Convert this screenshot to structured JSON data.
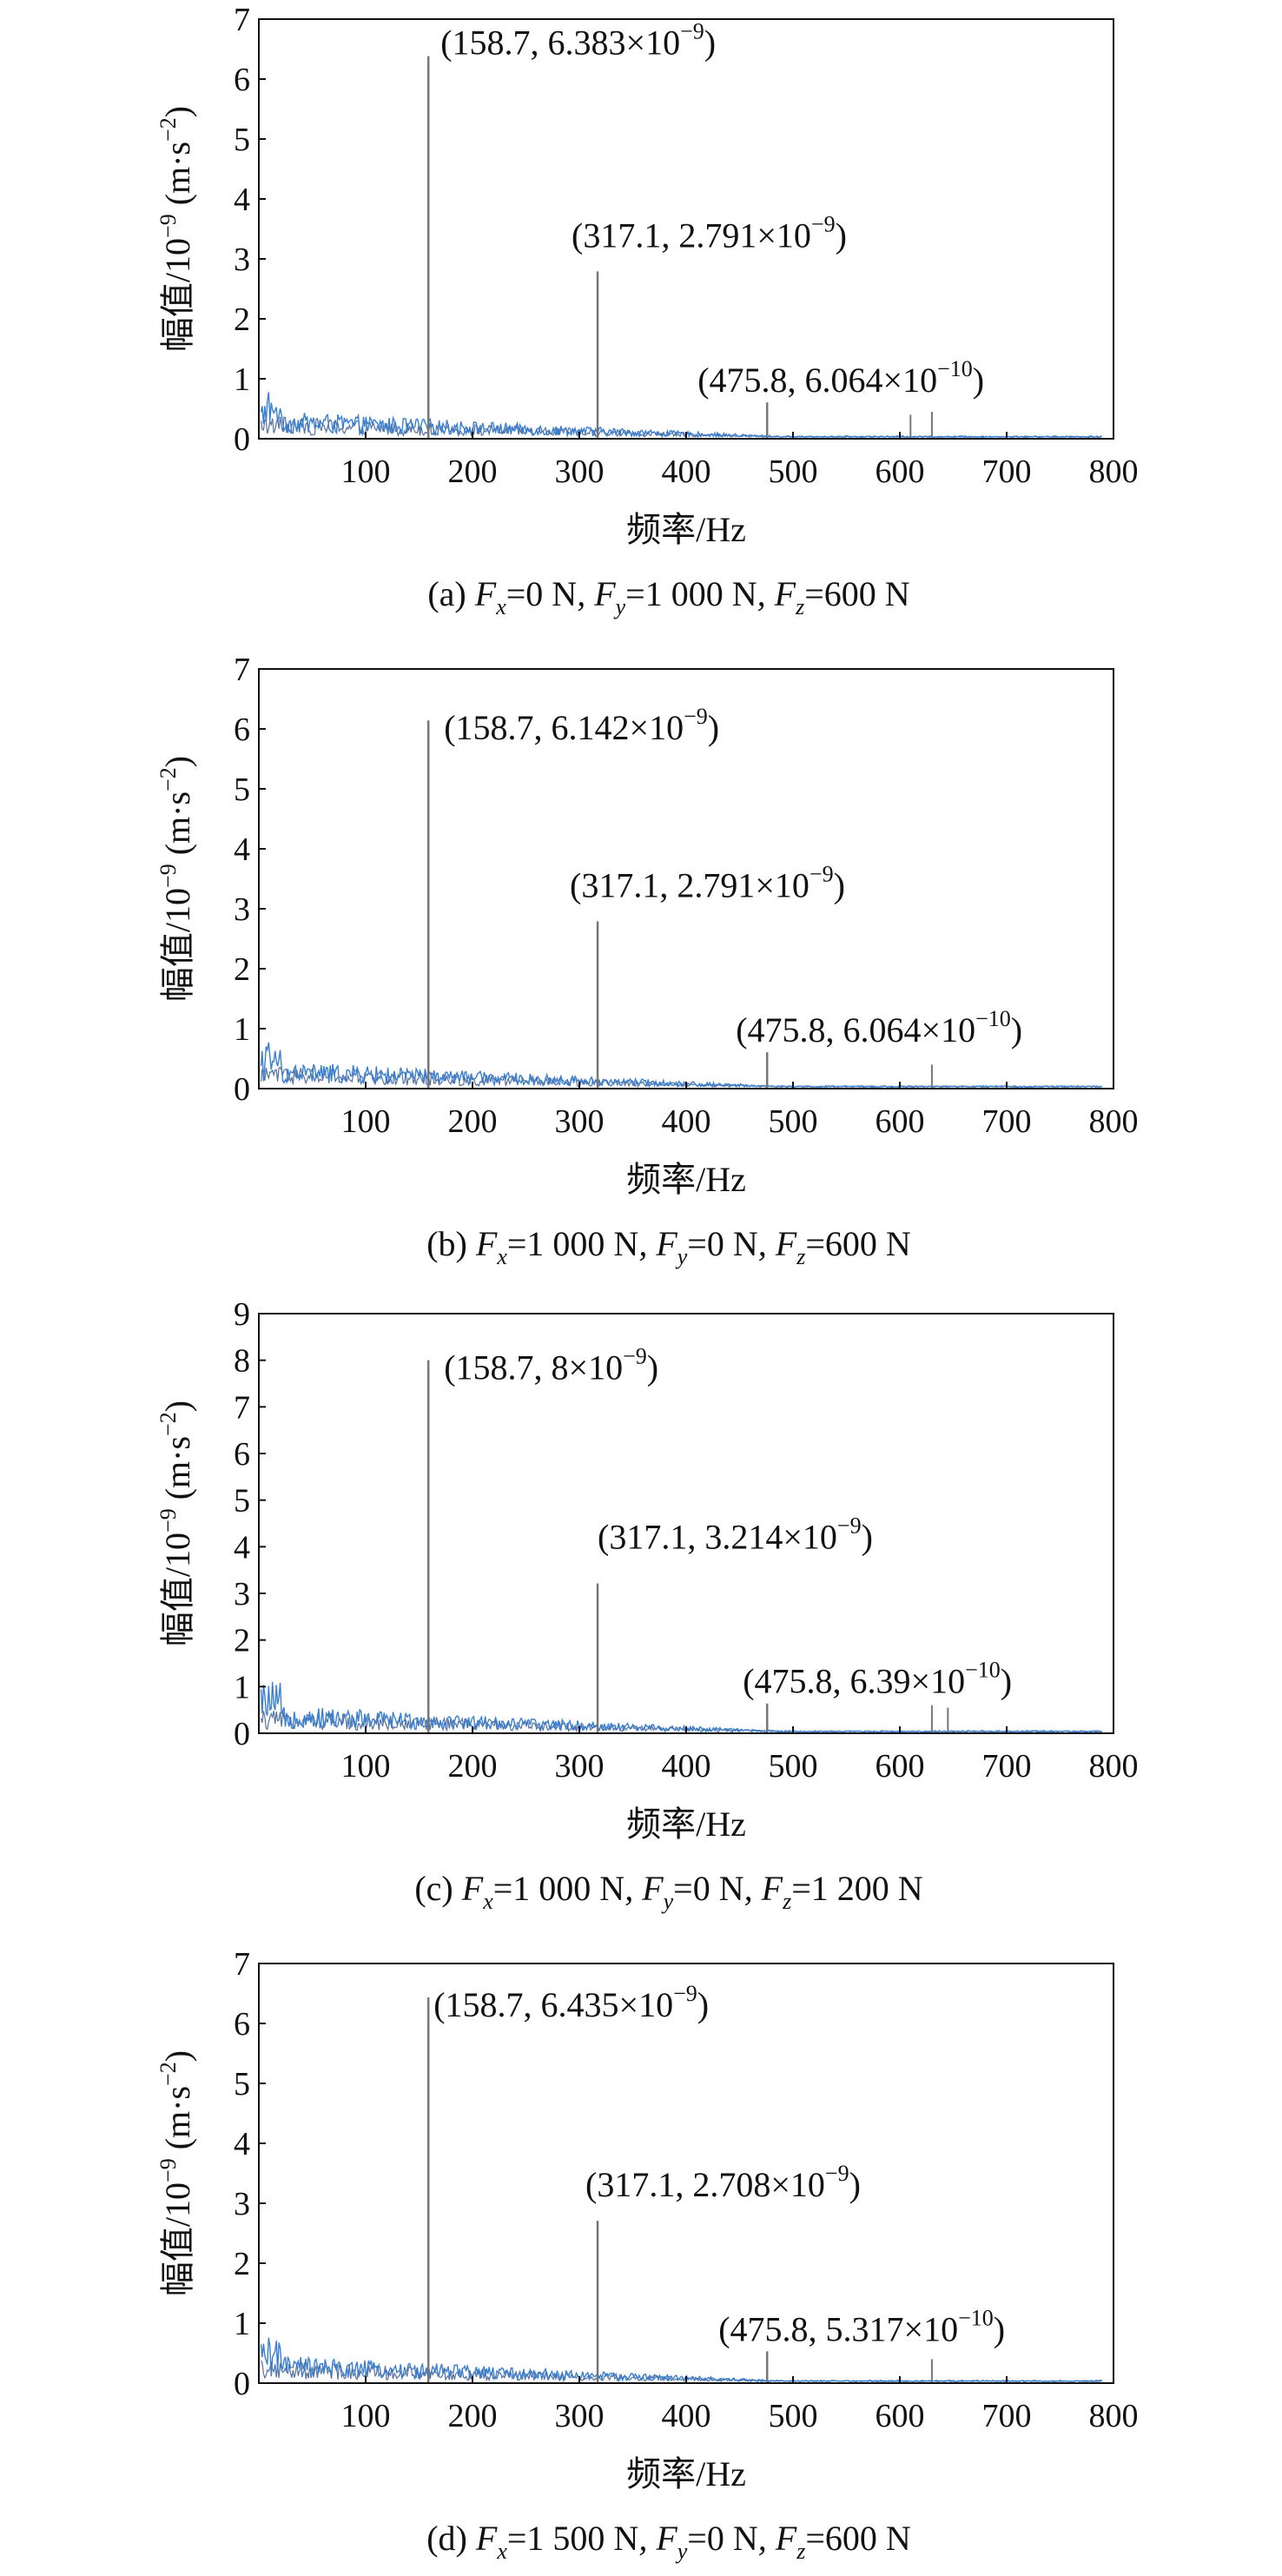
{
  "chart_data": [
    {
      "type": "line",
      "caption": {
        "label": "(a)",
        "fx": "0 N",
        "fy": "1 000 N",
        "fz": "600 N"
      },
      "xlabel": "频率/Hz",
      "ylabel": {
        "main": "幅值/10",
        "exp": "−9",
        "unit_pre": " (m·s",
        "unit_exp": "−2",
        "unit_post": ")"
      },
      "xlim": [
        0,
        800
      ],
      "ylim": [
        0,
        7
      ],
      "xticks": [
        100,
        200,
        300,
        400,
        500,
        600,
        700,
        800
      ],
      "yticks": [
        0,
        1,
        2,
        3,
        4,
        5,
        6,
        7
      ],
      "peaks": [
        {
          "x": 158.7,
          "y": 6.383
        },
        {
          "x": 317.1,
          "y": 2.791
        },
        {
          "x": 475.8,
          "y": 0.6064
        }
      ],
      "minor_peaks": [
        {
          "x": 610,
          "y": 0.4
        },
        {
          "x": 630,
          "y": 0.45
        }
      ],
      "annotations": [
        {
          "x": 158.7,
          "y": 6.383,
          "text": "(158.7, 6.383×10",
          "exp": "−9",
          "close": ")"
        },
        {
          "x": 317.1,
          "y": 2.791,
          "text": "(317.1, 2.791×10",
          "exp": "−9",
          "close": ")"
        },
        {
          "x": 475.8,
          "y": 0.6064,
          "text": "(475.8, 6.064×10",
          "exp": "−10",
          "close": ")"
        }
      ],
      "noise_level": 0.45
    },
    {
      "type": "line",
      "caption": {
        "label": "(b)",
        "fx": "1 000 N",
        "fy": "0 N",
        "fz": "600 N"
      },
      "xlabel": "频率/Hz",
      "ylabel": {
        "main": "幅值/10",
        "exp": "−9",
        "unit_pre": " (m·s",
        "unit_exp": "−2",
        "unit_post": ")"
      },
      "xlim": [
        0,
        800
      ],
      "ylim": [
        0,
        7
      ],
      "xticks": [
        100,
        200,
        300,
        400,
        500,
        600,
        700,
        800
      ],
      "yticks": [
        0,
        1,
        2,
        3,
        4,
        5,
        6,
        7
      ],
      "peaks": [
        {
          "x": 158.7,
          "y": 6.142
        },
        {
          "x": 317.1,
          "y": 2.791
        },
        {
          "x": 475.8,
          "y": 0.6064
        }
      ],
      "minor_peaks": [
        {
          "x": 630,
          "y": 0.4
        }
      ],
      "annotations": [
        {
          "x": 158.7,
          "y": 6.142,
          "text": "(158.7, 6.142×10",
          "exp": "−9",
          "close": ")"
        },
        {
          "x": 317.1,
          "y": 2.791,
          "text": "(317.1, 2.791×10",
          "exp": "−9",
          "close": ")"
        },
        {
          "x": 475.8,
          "y": 0.6064,
          "text": "(475.8, 6.064×10",
          "exp": "−10",
          "close": ")"
        }
      ],
      "noise_level": 0.45
    },
    {
      "type": "line",
      "caption": {
        "label": "(c)",
        "fx": "1 000 N",
        "fy": "0 N",
        "fz": "1 200 N"
      },
      "xlabel": "频率/Hz",
      "ylabel": {
        "main": "幅值/10",
        "exp": "−9",
        "unit_pre": " (m·s",
        "unit_exp": "−2",
        "unit_post": ")"
      },
      "xlim": [
        0,
        800
      ],
      "ylim": [
        0,
        9
      ],
      "xticks": [
        100,
        200,
        300,
        400,
        500,
        600,
        700,
        800
      ],
      "yticks": [
        0,
        1,
        2,
        3,
        4,
        5,
        6,
        7,
        8,
        9
      ],
      "peaks": [
        {
          "x": 158.7,
          "y": 8
        },
        {
          "x": 317.1,
          "y": 3.214
        },
        {
          "x": 475.8,
          "y": 0.639
        }
      ],
      "minor_peaks": [
        {
          "x": 630,
          "y": 0.6
        },
        {
          "x": 645,
          "y": 0.55
        }
      ],
      "annotations": [
        {
          "x": 158.7,
          "y": 8,
          "text": "(158.7, 8×10",
          "exp": "−9",
          "close": ")"
        },
        {
          "x": 317.1,
          "y": 3.214,
          "text": "(317.1, 3.214×10",
          "exp": "−9",
          "close": ")"
        },
        {
          "x": 475.8,
          "y": 0.639,
          "text": "(475.8, 6.39×10",
          "exp": "−10",
          "close": ")"
        }
      ],
      "noise_level": 0.6
    },
    {
      "type": "line",
      "caption": {
        "label": "(d)",
        "fx": "1 500 N",
        "fy": "0 N",
        "fz": "600 N"
      },
      "xlabel": "频率/Hz",
      "ylabel": {
        "main": "幅值/10",
        "exp": "−9",
        "unit_pre": " (m·s",
        "unit_exp": "−2",
        "unit_post": ")"
      },
      "xlim": [
        0,
        800
      ],
      "ylim": [
        0,
        7
      ],
      "xticks": [
        100,
        200,
        300,
        400,
        500,
        600,
        700,
        800
      ],
      "yticks": [
        0,
        1,
        2,
        3,
        4,
        5,
        6,
        7
      ],
      "peaks": [
        {
          "x": 158.7,
          "y": 6.435
        },
        {
          "x": 317.1,
          "y": 2.708
        },
        {
          "x": 475.8,
          "y": 0.5317
        }
      ],
      "minor_peaks": [
        {
          "x": 630,
          "y": 0.4
        }
      ],
      "annotations": [
        {
          "x": 158.7,
          "y": 6.435,
          "text": "(158.7, 6.435×10",
          "exp": "−9",
          "close": ")"
        },
        {
          "x": 317.1,
          "y": 2.708,
          "text": "(317.1, 2.708×10",
          "exp": "−9",
          "close": ")"
        },
        {
          "x": 475.8,
          "y": 0.5317,
          "text": "(475.8, 5.317×10",
          "exp": "−10",
          "close": ")"
        }
      ],
      "noise_level": 0.45
    }
  ],
  "colors": {
    "noise": "#3a7fd0",
    "noise_dark": "#2a4d8a",
    "peak": "#777777",
    "axis": "#111111"
  }
}
